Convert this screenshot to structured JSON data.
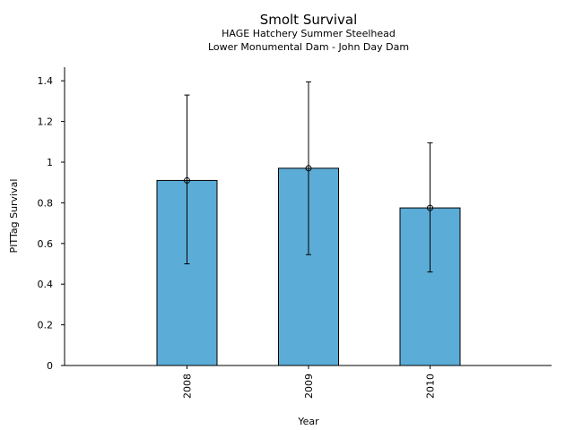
{
  "chart_data": {
    "type": "bar",
    "title": "Smolt Survival",
    "subtitle_lines": [
      "HAGE Hatchery Summer Steelhead",
      "Lower Monumental Dam - John Day Dam"
    ],
    "xlabel": "Year",
    "ylabel": "PITTag Survival",
    "categories": [
      "2008",
      "2009",
      "2010"
    ],
    "values": [
      0.91,
      0.97,
      0.775
    ],
    "error_low": [
      0.5,
      0.545,
      0.46
    ],
    "error_high": [
      1.33,
      1.395,
      1.095
    ],
    "ylim": [
      0,
      1.46
    ],
    "yticks": [
      0,
      0.2,
      0.4,
      0.6,
      0.8,
      1,
      1.2,
      1.4
    ],
    "ytick_labels": [
      "0",
      "0.2",
      "0.4",
      "0.6",
      "0.8",
      "1",
      "1.2",
      "1.4"
    ],
    "bar_color": "#5bacd6",
    "grid": false,
    "legend": "none"
  }
}
